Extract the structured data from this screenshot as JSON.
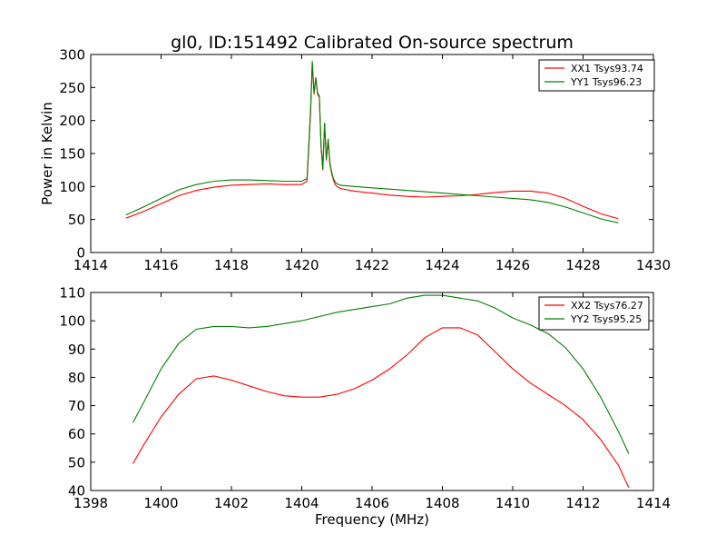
{
  "chart_data": [
    {
      "type": "line",
      "title": "gl0, ID:151492 Calibrated On-source spectrum",
      "xlabel": "",
      "ylabel": "Power in Kelvin",
      "xlim": [
        1414,
        1430
      ],
      "ylim": [
        0,
        300
      ],
      "xticks": [
        "1414",
        "1416",
        "1418",
        "1420",
        "1422",
        "1424",
        "1426",
        "1428",
        "1430"
      ],
      "yticks": [
        "0",
        "50",
        "100",
        "150",
        "200",
        "250",
        "300"
      ],
      "legend_position": "top-right",
      "series": [
        {
          "name": "XX1 Tsys93.74",
          "color": "#ff0000",
          "x": [
            1415.0,
            1415.5,
            1416.0,
            1416.5,
            1417.0,
            1417.5,
            1418.0,
            1418.5,
            1419.0,
            1419.5,
            1420.0,
            1420.15,
            1420.25,
            1420.3,
            1420.35,
            1420.4,
            1420.45,
            1420.5,
            1420.55,
            1420.6,
            1420.65,
            1420.7,
            1420.75,
            1420.8,
            1420.85,
            1420.9,
            1420.95,
            1421.0,
            1421.1,
            1421.3,
            1421.5,
            1422.0,
            1422.5,
            1423.0,
            1423.5,
            1424.0,
            1424.5,
            1425.0,
            1425.5,
            1426.0,
            1426.5,
            1427.0,
            1427.5,
            1428.0,
            1428.5,
            1429.0
          ],
          "y": [
            52,
            62,
            74,
            86,
            94,
            99,
            102,
            103,
            104,
            103,
            103,
            108,
            210,
            285,
            240,
            265,
            240,
            235,
            160,
            125,
            195,
            140,
            170,
            135,
            120,
            110,
            103,
            100,
            97,
            95,
            93,
            90,
            87,
            85,
            84,
            85,
            86,
            88,
            91,
            93,
            93,
            90,
            82,
            70,
            59,
            51
          ]
        },
        {
          "name": "YY1 Tsys96.23",
          "color": "#008000",
          "x": [
            1415.0,
            1415.5,
            1416.0,
            1416.5,
            1417.0,
            1417.5,
            1418.0,
            1418.5,
            1419.0,
            1419.5,
            1420.0,
            1420.15,
            1420.25,
            1420.3,
            1420.35,
            1420.4,
            1420.45,
            1420.5,
            1420.55,
            1420.6,
            1420.65,
            1420.7,
            1420.75,
            1420.8,
            1420.85,
            1420.9,
            1420.95,
            1421.0,
            1421.1,
            1421.3,
            1421.5,
            1422.0,
            1422.5,
            1423.0,
            1423.5,
            1424.0,
            1424.5,
            1425.0,
            1425.5,
            1426.0,
            1426.5,
            1427.0,
            1427.5,
            1428.0,
            1428.5,
            1429.0
          ],
          "y": [
            57,
            69,
            82,
            95,
            103,
            108,
            110,
            110,
            109,
            108,
            108,
            112,
            215,
            290,
            242,
            265,
            242,
            237,
            162,
            127,
            196,
            142,
            172,
            137,
            122,
            112,
            107,
            104,
            102,
            101,
            100,
            98,
            96,
            94,
            92,
            90,
            88,
            86,
            84,
            82,
            80,
            76,
            69,
            60,
            51,
            45
          ]
        }
      ]
    },
    {
      "type": "line",
      "title": "",
      "xlabel": "Frequency (MHz)",
      "ylabel": "",
      "xlim": [
        1398,
        1414
      ],
      "ylim": [
        40,
        110
      ],
      "xticks": [
        "1398",
        "1400",
        "1402",
        "1404",
        "1406",
        "1408",
        "1410",
        "1412",
        "1414"
      ],
      "yticks": [
        "40",
        "50",
        "60",
        "70",
        "80",
        "90",
        "100",
        "110"
      ],
      "legend_position": "top-right",
      "series": [
        {
          "name": "XX2 Tsys76.27",
          "color": "#ff0000",
          "x": [
            1399.2,
            1399.5,
            1400.0,
            1400.5,
            1401.0,
            1401.5,
            1402.0,
            1402.5,
            1403.0,
            1403.5,
            1404.0,
            1404.5,
            1405.0,
            1405.5,
            1406.0,
            1406.5,
            1407.0,
            1407.5,
            1408.0,
            1408.5,
            1409.0,
            1409.5,
            1410.0,
            1410.5,
            1411.0,
            1411.5,
            1412.0,
            1412.5,
            1413.0,
            1413.3
          ],
          "y": [
            49.5,
            56,
            66,
            74,
            79.5,
            80.5,
            79,
            77,
            75,
            73.5,
            73,
            73,
            74,
            76,
            79,
            83,
            88,
            94,
            97.5,
            97.5,
            95,
            89,
            83,
            78,
            74,
            70,
            65,
            58,
            49,
            41
          ]
        },
        {
          "name": "YY2 Tsys95.25",
          "color": "#008000",
          "x": [
            1399.2,
            1399.5,
            1400.0,
            1400.5,
            1401.0,
            1401.5,
            1402.0,
            1402.5,
            1403.0,
            1403.5,
            1404.0,
            1404.5,
            1405.0,
            1405.5,
            1406.0,
            1406.5,
            1407.0,
            1407.5,
            1408.0,
            1408.5,
            1409.0,
            1409.5,
            1410.0,
            1410.5,
            1411.0,
            1411.5,
            1412.0,
            1412.5,
            1413.0,
            1413.3
          ],
          "y": [
            64,
            71,
            83,
            92,
            97,
            98,
            98,
            97.5,
            98,
            99,
            100,
            101.5,
            103,
            104,
            105,
            106,
            108,
            109,
            109,
            108,
            107,
            104.5,
            101,
            98.5,
            95.5,
            90.5,
            83,
            73,
            61,
            53
          ]
        }
      ]
    }
  ]
}
